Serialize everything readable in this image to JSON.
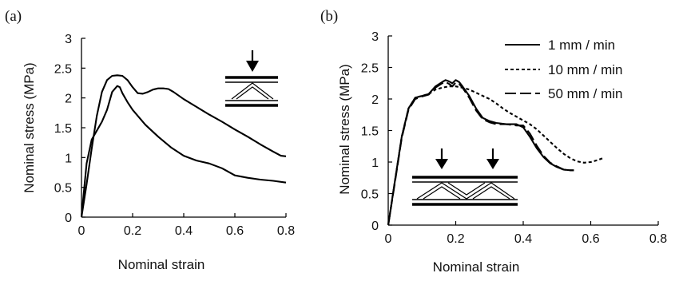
{
  "chart_data": [
    {
      "type": "line",
      "panel_label": "(a)",
      "xlabel": "Nominal strain",
      "ylabel": "Nominal stress (MPa)",
      "xlim": [
        0,
        0.8
      ],
      "ylim": [
        0,
        3
      ],
      "xticks": [
        0,
        0.2,
        0.4,
        0.6,
        0.8
      ],
      "xtick_labels": [
        "0",
        "0.2",
        "0.4",
        "0.6",
        "0.8"
      ],
      "yticks": [
        0,
        0.5,
        1,
        1.5,
        2,
        2.5,
        3
      ],
      "ytick_labels": [
        "0",
        "0.5",
        "1",
        "1.5",
        "2",
        "2.5",
        "3"
      ],
      "series": [
        {
          "style": "solid",
          "x": [
            0,
            0.02,
            0.04,
            0.06,
            0.08,
            0.1,
            0.12,
            0.14,
            0.16,
            0.18,
            0.2,
            0.22,
            0.24,
            0.26,
            0.28,
            0.3,
            0.32,
            0.34,
            0.36,
            0.38,
            0.4,
            0.45,
            0.5,
            0.55,
            0.6,
            0.65,
            0.7,
            0.75,
            0.78,
            0.8
          ],
          "y": [
            0,
            0.55,
            1.15,
            1.7,
            2.1,
            2.3,
            2.37,
            2.38,
            2.37,
            2.3,
            2.18,
            2.08,
            2.07,
            2.1,
            2.14,
            2.16,
            2.16,
            2.15,
            2.1,
            2.04,
            1.98,
            1.85,
            1.72,
            1.6,
            1.47,
            1.35,
            1.22,
            1.1,
            1.03,
            1.02
          ]
        },
        {
          "style": "solid",
          "x": [
            0,
            0.02,
            0.04,
            0.06,
            0.08,
            0.1,
            0.12,
            0.14,
            0.15,
            0.16,
            0.18,
            0.2,
            0.25,
            0.3,
            0.35,
            0.4,
            0.45,
            0.5,
            0.55,
            0.6,
            0.65,
            0.7,
            0.75,
            0.8
          ],
          "y": [
            0,
            0.9,
            1.3,
            1.45,
            1.6,
            1.8,
            2.1,
            2.2,
            2.18,
            2.08,
            1.93,
            1.8,
            1.55,
            1.35,
            1.17,
            1.03,
            0.95,
            0.9,
            0.82,
            0.7,
            0.66,
            0.63,
            0.61,
            0.58
          ]
        }
      ],
      "inset_icon": "arrow-single-truss-cell"
    },
    {
      "type": "line",
      "panel_label": "(b)",
      "xlabel": "Nominal strain",
      "ylabel": "Nominal stress (MPa)",
      "xlim": [
        0,
        0.8
      ],
      "ylim": [
        0,
        3
      ],
      "xticks": [
        0,
        0.2,
        0.4,
        0.6,
        0.8
      ],
      "xtick_labels": [
        "0",
        "0.2",
        "0.4",
        "0.6",
        "0.8"
      ],
      "yticks": [
        0,
        0.5,
        1,
        1.5,
        2,
        2.5,
        3
      ],
      "ytick_labels": [
        "0",
        "0.5",
        "1",
        "1.5",
        "2",
        "2.5",
        "3"
      ],
      "legend_position": "top-right",
      "series": [
        {
          "name": "1 mm / min",
          "style": "solid",
          "x": [
            0,
            0.02,
            0.04,
            0.06,
            0.08,
            0.1,
            0.12,
            0.14,
            0.16,
            0.17,
            0.18,
            0.19,
            0.2,
            0.21,
            0.22,
            0.24,
            0.26,
            0.28,
            0.3,
            0.32,
            0.35,
            0.38,
            0.4,
            0.42,
            0.44,
            0.46,
            0.48,
            0.5,
            0.52,
            0.54,
            0.55
          ],
          "y": [
            0,
            0.7,
            1.4,
            1.85,
            2.02,
            2.05,
            2.08,
            2.2,
            2.27,
            2.3,
            2.28,
            2.25,
            2.3,
            2.27,
            2.2,
            2.05,
            1.85,
            1.7,
            1.65,
            1.62,
            1.6,
            1.6,
            1.55,
            1.4,
            1.22,
            1.08,
            0.98,
            0.92,
            0.88,
            0.87,
            0.87
          ]
        },
        {
          "name": "10 mm / min",
          "style": "dotted",
          "x": [
            0,
            0.02,
            0.04,
            0.06,
            0.08,
            0.1,
            0.12,
            0.14,
            0.16,
            0.18,
            0.2,
            0.22,
            0.24,
            0.26,
            0.28,
            0.3,
            0.32,
            0.34,
            0.36,
            0.38,
            0.4,
            0.42,
            0.44,
            0.46,
            0.48,
            0.5,
            0.52,
            0.54,
            0.56,
            0.58,
            0.6,
            0.62,
            0.64
          ],
          "y": [
            0,
            0.7,
            1.4,
            1.85,
            2.02,
            2.05,
            2.08,
            2.15,
            2.18,
            2.2,
            2.2,
            2.18,
            2.15,
            2.1,
            2.05,
            2.0,
            1.93,
            1.85,
            1.78,
            1.72,
            1.66,
            1.6,
            1.52,
            1.42,
            1.32,
            1.22,
            1.13,
            1.06,
            1.01,
            0.99,
            1.0,
            1.03,
            1.07
          ]
        },
        {
          "name": "50 mm / min",
          "style": "dashed",
          "x": [
            0,
            0.02,
            0.04,
            0.06,
            0.08,
            0.1,
            0.12,
            0.14,
            0.16,
            0.17,
            0.18,
            0.19,
            0.2,
            0.21,
            0.22,
            0.24,
            0.26,
            0.28,
            0.3,
            0.32,
            0.35,
            0.38,
            0.4,
            0.42,
            0.44,
            0.46,
            0.48,
            0.5,
            0.52,
            0.54,
            0.55
          ],
          "y": [
            0,
            0.68,
            1.38,
            1.83,
            2.0,
            2.04,
            2.07,
            2.18,
            2.25,
            2.27,
            2.24,
            2.2,
            2.26,
            2.24,
            2.18,
            2.02,
            1.82,
            1.68,
            1.63,
            1.6,
            1.6,
            1.58,
            1.58,
            1.45,
            1.26,
            1.1,
            0.99,
            0.93,
            0.88,
            0.87,
            0.87
          ]
        }
      ],
      "inset_icon": "arrow-double-truss-cell"
    }
  ]
}
